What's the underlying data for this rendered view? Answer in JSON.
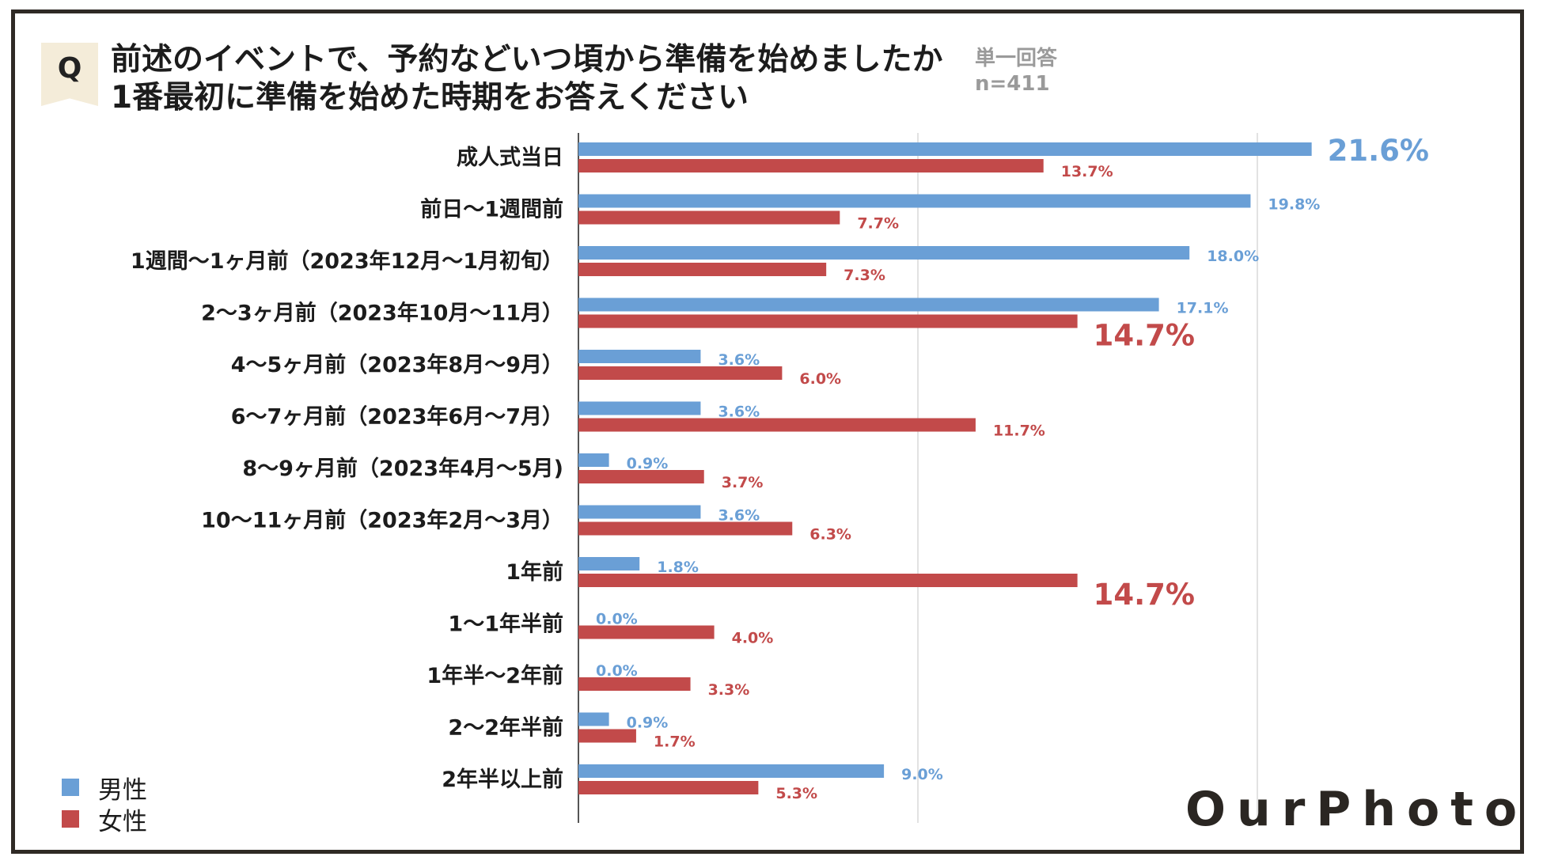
{
  "header": {
    "badge": "Q",
    "title_line1": "前述のイベントで、予約などいつ頃から準備を始めましたか",
    "title_line2": "1番最初に準備を始めた時期をお答えください",
    "answer_type": "単一回答",
    "sample_size": "n=411"
  },
  "legend": {
    "male": "男性",
    "female": "女性"
  },
  "logo": "OurPhoto",
  "colors": {
    "male": "#6a9fd6",
    "female": "#c24a4a",
    "grid": "#d9d9d9",
    "axis": "#555555"
  },
  "chart_data": {
    "type": "bar",
    "orientation": "horizontal",
    "title": "前述のイベントで、予約などいつ頃から準備を始めましたか 1番最初に準備を始めた時期をお答えください",
    "xlim": [
      0,
      50
    ],
    "grid": true,
    "categories": [
      "成人式当日",
      "前日〜1週間前",
      "1週間〜1ヶ月前（2023年12月〜1月初旬）",
      "2〜3ヶ月前（2023年10月〜11月）",
      "4〜5ヶ月前（2023年8月〜9月）",
      "6〜7ヶ月前（2023年6月〜7月）",
      "8〜9ヶ月前（2023年4月〜5月)",
      "10〜11ヶ月前（2023年2月〜3月）",
      "1年前",
      "1〜1年半前",
      "1年半〜2年前",
      "2〜2年半前",
      "2年半以上前"
    ],
    "series": [
      {
        "name": "男性",
        "values": [
          21.6,
          19.8,
          18.0,
          17.1,
          3.6,
          3.6,
          0.9,
          3.6,
          1.8,
          0.0,
          0.0,
          0.9,
          9.0
        ],
        "labels": [
          "21.6%",
          "19.8%",
          "18.0%",
          "17.1%",
          "3.6%",
          "3.6%",
          "0.9%",
          "3.6%",
          "1.8%",
          "0.0%",
          "0.0%",
          "0.9%",
          "9.0%"
        ],
        "highlight": [
          true,
          false,
          false,
          false,
          false,
          false,
          false,
          false,
          false,
          false,
          false,
          false,
          false
        ]
      },
      {
        "name": "女性",
        "values": [
          13.7,
          7.7,
          7.3,
          14.7,
          6.0,
          11.7,
          3.7,
          6.3,
          14.7,
          4.0,
          3.3,
          1.7,
          5.3
        ],
        "labels": [
          "13.7%",
          "7.7%",
          "7.3%",
          "14.7%",
          "6.0%",
          "11.7%",
          "3.7%",
          "6.3%",
          "14.7%",
          "4.0%",
          "3.3%",
          "1.7%",
          "5.3%"
        ],
        "highlight": [
          false,
          false,
          false,
          true,
          false,
          false,
          false,
          false,
          true,
          false,
          false,
          false,
          false
        ]
      }
    ]
  }
}
